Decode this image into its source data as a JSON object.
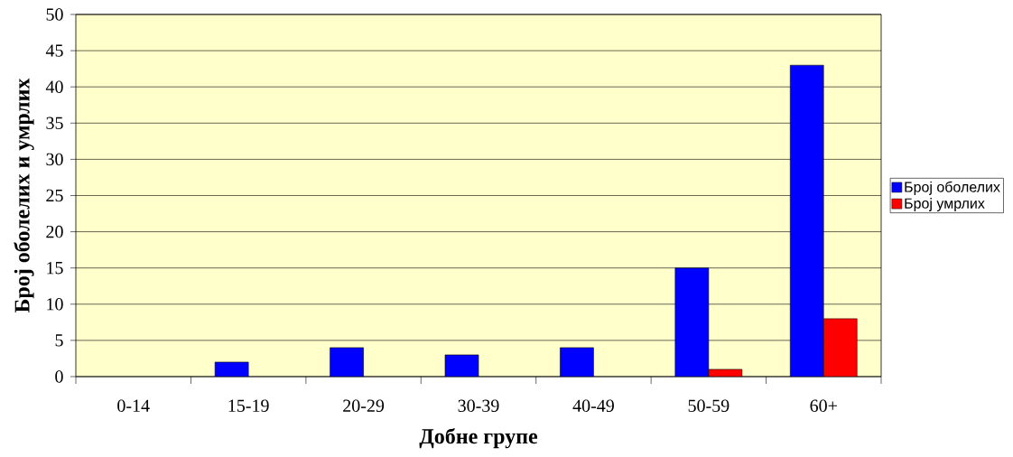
{
  "chart_data": {
    "type": "bar",
    "xlabel": "Добне групе",
    "ylabel": "Број оболелих и умрлих",
    "categories": [
      "0-14",
      "15-19",
      "20-29",
      "30-39",
      "40-49",
      "50-59",
      "60+"
    ],
    "series": [
      {
        "name": "Број оболелих",
        "color": "#0000ff",
        "values": [
          0,
          2,
          4,
          3,
          4,
          15,
          43
        ]
      },
      {
        "name": "Број умрлих",
        "color": "#ff0000",
        "values": [
          0,
          0,
          0,
          0,
          0,
          1,
          8
        ]
      }
    ],
    "ylim": [
      0,
      50
    ],
    "yticks": [
      0,
      5,
      10,
      15,
      20,
      25,
      30,
      35,
      40,
      45,
      50
    ],
    "grid": "y",
    "legend": "right"
  }
}
